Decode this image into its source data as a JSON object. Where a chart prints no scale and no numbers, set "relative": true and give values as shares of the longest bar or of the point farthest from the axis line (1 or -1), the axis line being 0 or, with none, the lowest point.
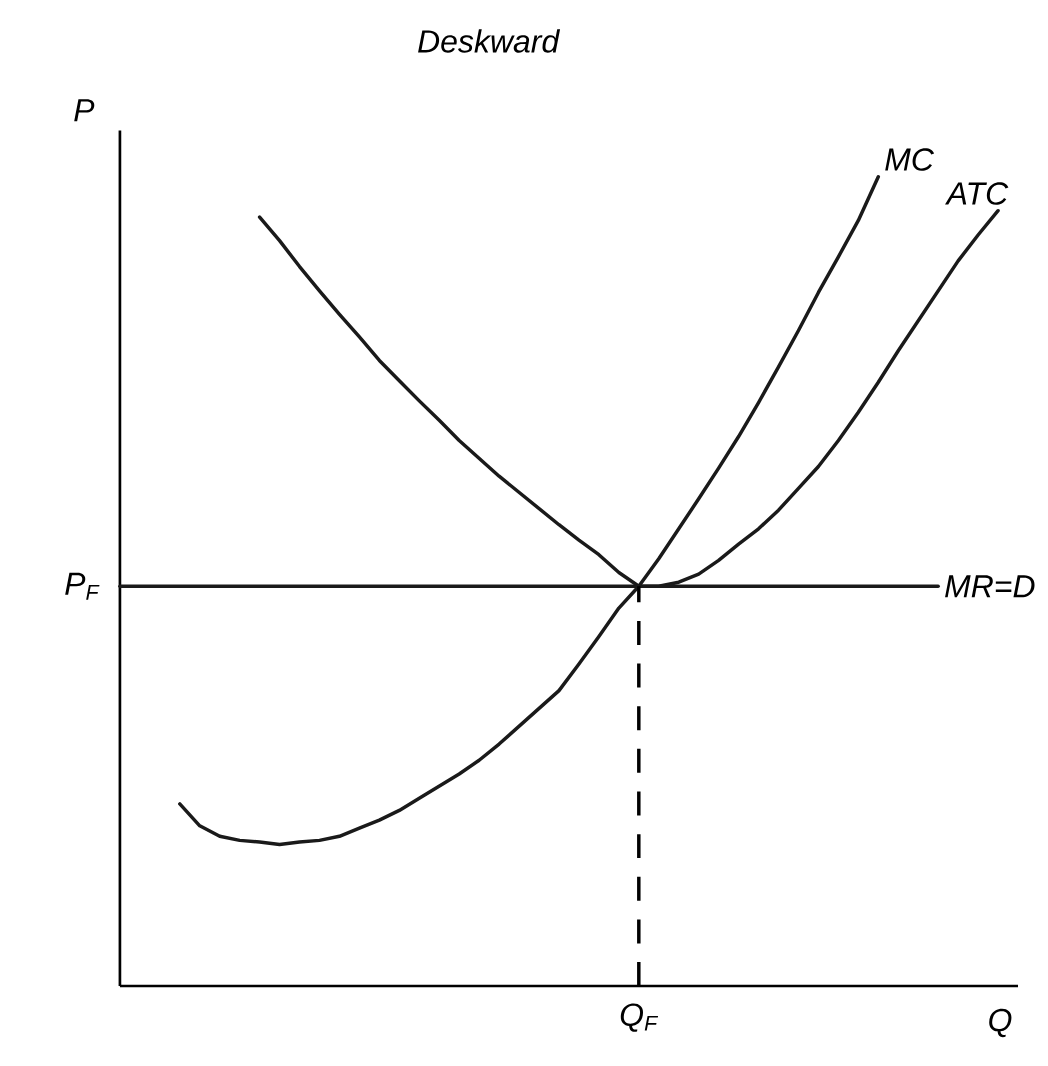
{
  "chart_data": {
    "type": "line",
    "relative": true,
    "title": "Deskward",
    "xlabel": "Q",
    "ylabel": "P",
    "marker": "none",
    "categories": [
      null,
      null,
      null,
      null,
      null,
      null,
      null,
      null,
      null,
      null,
      null,
      null,
      null,
      null,
      null,
      null,
      null,
      null,
      null,
      null,
      null,
      null,
      null,
      null,
      null,
      null,
      null,
      null,
      null,
      null,
      null,
      null,
      null,
      null,
      null,
      null,
      null,
      null,
      null,
      null,
      null,
      null,
      null,
      null,
      null,
      null
    ],
    "series": [
      {
        "name": "MC",
        "color": "#1a1a1a",
        "values": [
          null,
          null,
          null,
          0.225,
          0.198,
          0.185,
          0.18,
          0.178,
          0.175,
          0.178,
          0.18,
          0.185,
          0.195,
          0.205,
          0.217,
          0.232,
          0.247,
          0.262,
          0.279,
          0.299,
          0.321,
          0.343,
          0.365,
          0.398,
          0.432,
          0.467,
          0.494,
          0.528,
          0.565,
          0.602,
          0.64,
          0.679,
          0.721,
          0.765,
          0.81,
          0.857,
          0.901,
          0.946,
          1.0,
          null,
          null,
          null,
          null,
          null,
          null,
          null
        ]
      },
      {
        "name": "ATC",
        "color": "#1a1a1a",
        "values": [
          null,
          null,
          null,
          null,
          null,
          null,
          null,
          0.95,
          0.921,
          0.889,
          0.859,
          0.83,
          0.802,
          0.773,
          0.748,
          0.723,
          0.699,
          0.674,
          0.652,
          0.63,
          0.61,
          0.59,
          0.57,
          0.551,
          0.533,
          0.511,
          0.494,
          0.494,
          0.499,
          0.509,
          0.526,
          0.546,
          0.565,
          0.588,
          0.615,
          0.642,
          0.674,
          0.709,
          0.746,
          0.785,
          0.822,
          0.859,
          0.896,
          0.928,
          0.958,
          null
        ]
      },
      {
        "name": "MR=D",
        "color": "#1a1a1a",
        "values": [
          0.494,
          0.494,
          0.494,
          0.494,
          0.494,
          0.494,
          0.494,
          0.494,
          0.494,
          0.494,
          0.494,
          0.494,
          0.494,
          0.494,
          0.494,
          0.494,
          0.494,
          0.494,
          0.494,
          0.494,
          0.494,
          0.494,
          0.494,
          0.494,
          0.494,
          0.494,
          0.494,
          0.494,
          0.494,
          0.494,
          0.494,
          0.494,
          0.494,
          0.494,
          0.494,
          0.494,
          0.494,
          0.494,
          0.494,
          0.494,
          0.494,
          0.494,
          null,
          null,
          null,
          null
        ]
      }
    ],
    "annotations": [
      "P$_{F}$",
      "Q$_{F}$"
    ]
  }
}
